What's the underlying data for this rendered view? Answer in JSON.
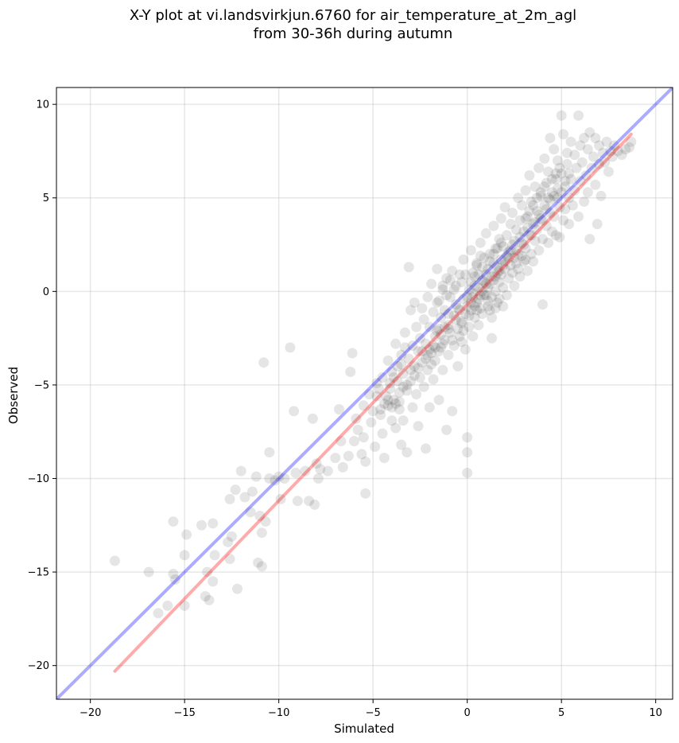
{
  "chart_data": {
    "type": "scatter",
    "title_line1": "X-Y plot at vi.landsvirkjun.6760 for air_temperature_at_2m_agl",
    "title_line2": "from 30-36h during autumn",
    "xlabel": "Simulated",
    "ylabel": "Observed",
    "xlim": [
      -21.8,
      10.9
    ],
    "ylim": [
      -21.8,
      10.9
    ],
    "xticks": [
      -20,
      -15,
      -10,
      -5,
      0,
      5,
      10
    ],
    "yticks": [
      -20,
      -15,
      -10,
      -5,
      0,
      5,
      10
    ],
    "xtick_labels": [
      "−20",
      "−15",
      "−10",
      "−5",
      "0",
      "5",
      "10"
    ],
    "ytick_labels": [
      "−20",
      "−15",
      "−10",
      "−5",
      "0",
      "5",
      "10"
    ],
    "grid": true,
    "marker_color": "#000000",
    "marker_alpha": 0.1,
    "identity_line": {
      "color": "#0000ff",
      "alpha": 0.33,
      "from": [
        -21.8,
        -21.8
      ],
      "to": [
        10.9,
        10.9
      ]
    },
    "fit_line": {
      "color": "#ff0000",
      "alpha": 0.33,
      "from": [
        -18.7,
        -20.3
      ],
      "to": [
        8.7,
        8.4
      ]
    },
    "points": [
      [
        -18.7,
        -14.4
      ],
      [
        -16.9,
        -15.0
      ],
      [
        -16.4,
        -17.2
      ],
      [
        -15.9,
        -16.8
      ],
      [
        -15.6,
        -12.3
      ],
      [
        -15.6,
        -15.1
      ],
      [
        -15.5,
        -15.4
      ],
      [
        -15.0,
        -16.8
      ],
      [
        -15.0,
        -14.1
      ],
      [
        -14.9,
        -13.0
      ],
      [
        -14.1,
        -12.5
      ],
      [
        -13.9,
        -16.3
      ],
      [
        -13.7,
        -16.5
      ],
      [
        -13.5,
        -15.5
      ],
      [
        -13.5,
        -12.4
      ],
      [
        -13.4,
        -14.1
      ],
      [
        -13.8,
        -15.0
      ],
      [
        -12.7,
        -13.4
      ],
      [
        -12.6,
        -14.3
      ],
      [
        -12.5,
        -13.1
      ],
      [
        -12.6,
        -11.1
      ],
      [
        -12.3,
        -10.6
      ],
      [
        -12.2,
        -15.9
      ],
      [
        -12.0,
        -9.6
      ],
      [
        -11.8,
        -11.0
      ],
      [
        -11.5,
        -11.8
      ],
      [
        -11.4,
        -10.7
      ],
      [
        -11.2,
        -9.9
      ],
      [
        -11.1,
        -14.5
      ],
      [
        -10.9,
        -14.7
      ],
      [
        -10.9,
        -12.9
      ],
      [
        -10.7,
        -12.3
      ],
      [
        -11.0,
        -12.0
      ],
      [
        -10.8,
        -3.8
      ],
      [
        -10.5,
        -8.6
      ],
      [
        -10.5,
        -10.0
      ],
      [
        -10.2,
        -10.1
      ],
      [
        -10.0,
        -9.9
      ],
      [
        -9.9,
        -11.1
      ],
      [
        -9.7,
        -10.0
      ],
      [
        -9.4,
        -3.0
      ],
      [
        -9.2,
        -6.4
      ],
      [
        -9.1,
        -9.7
      ],
      [
        -9.0,
        -11.2
      ],
      [
        -8.6,
        -9.6
      ],
      [
        -8.4,
        -11.2
      ],
      [
        -8.2,
        -6.8
      ],
      [
        -8.1,
        -11.4
      ],
      [
        -8.0,
        -9.2
      ],
      [
        -7.9,
        -10.0
      ],
      [
        -7.8,
        -9.5
      ],
      [
        -7.4,
        -9.6
      ],
      [
        -7.0,
        -8.9
      ],
      [
        -6.8,
        -6.3
      ],
      [
        -6.7,
        -8.0
      ],
      [
        -6.6,
        -9.4
      ],
      [
        -6.3,
        -8.8
      ],
      [
        -6.2,
        -4.3
      ],
      [
        -6.1,
        -3.3
      ],
      [
        -6.0,
        -8.0
      ],
      [
        -5.9,
        -6.8
      ],
      [
        -5.8,
        -7.4
      ],
      [
        -5.6,
        -8.7
      ],
      [
        -5.5,
        -6.1
      ],
      [
        -5.5,
        -7.8
      ],
      [
        -5.4,
        -9.1
      ],
      [
        -5.4,
        -10.8
      ],
      [
        -5.2,
        -5.5
      ],
      [
        -5.1,
        -7.0
      ],
      [
        -5.0,
        -6.4
      ],
      [
        -4.9,
        -8.3
      ],
      [
        -4.8,
        -4.9
      ],
      [
        -4.7,
        -5.2
      ],
      [
        -4.6,
        -6.6
      ],
      [
        -4.5,
        -7.6
      ],
      [
        -4.5,
        -4.6
      ],
      [
        -4.4,
        -8.9
      ],
      [
        -4.3,
        -5.6
      ],
      [
        -4.2,
        -3.7
      ],
      [
        -4.2,
        -6.1
      ],
      [
        -4.1,
        -5.2
      ],
      [
        -4.0,
        -4.3
      ],
      [
        -4.0,
        -6.9
      ],
      [
        -3.9,
        -5.8
      ],
      [
        -3.8,
        -7.3
      ],
      [
        -3.8,
        -2.8
      ],
      [
        -3.7,
        -4.8
      ],
      [
        -3.6,
        -5.4
      ],
      [
        -3.6,
        -6.3
      ],
      [
        -3.5,
        -3.9
      ],
      [
        -3.5,
        -8.2
      ],
      [
        -3.4,
        -4.4
      ],
      [
        -3.4,
        -6.9
      ],
      [
        -3.3,
        -2.2
      ],
      [
        -3.2,
        -5.0
      ],
      [
        -3.2,
        -8.6
      ],
      [
        -3.1,
        1.3
      ],
      [
        -3.1,
        -3.6
      ],
      [
        -3.0,
        -4.8
      ],
      [
        -3.0,
        -1.0
      ],
      [
        -2.9,
        -6.2
      ],
      [
        -2.9,
        -2.9
      ],
      [
        -2.8,
        -0.6
      ],
      [
        -2.8,
        -4.0
      ],
      [
        -2.7,
        -5.5
      ],
      [
        -2.7,
        -1.9
      ],
      [
        -2.6,
        -3.2
      ],
      [
        -2.6,
        -7.2
      ],
      [
        -2.5,
        -4.6
      ],
      [
        -2.5,
        -2.5
      ],
      [
        -2.4,
        -0.9
      ],
      [
        -2.4,
        -3.8
      ],
      [
        -2.3,
        -5.1
      ],
      [
        -2.3,
        -1.5
      ],
      [
        -2.2,
        -8.4
      ],
      [
        -2.2,
        -2.8
      ],
      [
        -2.1,
        -4.2
      ],
      [
        -2.1,
        -0.3
      ],
      [
        -2.0,
        -6.2
      ],
      [
        -2.0,
        -1.9
      ],
      [
        -1.9,
        0.4
      ],
      [
        -1.9,
        -3.3
      ],
      [
        -1.8,
        -4.7
      ],
      [
        -1.8,
        -1.1
      ],
      [
        -1.7,
        -2.4
      ],
      [
        -1.7,
        -3.7
      ],
      [
        -1.6,
        1.2
      ],
      [
        -1.6,
        -0.6
      ],
      [
        -1.5,
        -2.0
      ],
      [
        -1.5,
        -5.8
      ],
      [
        -1.4,
        -3.0
      ],
      [
        -1.4,
        -1.4
      ],
      [
        -1.3,
        0.1
      ],
      [
        -1.3,
        -4.2
      ],
      [
        -1.2,
        -2.6
      ],
      [
        -1.2,
        -1.0
      ],
      [
        -1.1,
        -7.4
      ],
      [
        -1.1,
        0.7
      ],
      [
        -1.0,
        -1.8
      ],
      [
        -1.0,
        -3.4
      ],
      [
        -0.9,
        -0.3
      ],
      [
        -0.9,
        -2.2
      ],
      [
        -0.8,
        -6.4
      ],
      [
        -0.8,
        1.1
      ],
      [
        -0.7,
        -1.3
      ],
      [
        -0.7,
        -2.9
      ],
      [
        -0.6,
        -0.7
      ],
      [
        -0.6,
        0.3
      ],
      [
        -0.5,
        -2.0
      ],
      [
        -0.5,
        -4.0
      ],
      [
        -0.4,
        -1.0
      ],
      [
        -0.4,
        0.9
      ],
      [
        -0.3,
        -1.6
      ],
      [
        -0.3,
        -2.7
      ],
      [
        -0.2,
        -0.4
      ],
      [
        -0.2,
        1.7
      ],
      [
        -0.1,
        -1.2
      ],
      [
        -0.1,
        -3.1
      ],
      [
        0.0,
        -0.8
      ],
      [
        0.0,
        -9.7
      ],
      [
        0.0,
        -7.8
      ],
      [
        0.0,
        -8.6
      ],
      [
        0.1,
        0.1
      ],
      [
        0.1,
        -1.9
      ],
      [
        0.2,
        2.2
      ],
      [
        0.2,
        -1.0
      ],
      [
        0.3,
        -0.3
      ],
      [
        0.3,
        -2.4
      ],
      [
        0.4,
        0.8
      ],
      [
        0.4,
        -1.4
      ],
      [
        0.5,
        1.4
      ],
      [
        0.5,
        -0.6
      ],
      [
        0.6,
        -1.8
      ],
      [
        0.6,
        0.2
      ],
      [
        0.7,
        2.6
      ],
      [
        0.7,
        -0.9
      ],
      [
        0.8,
        0.6
      ],
      [
        0.8,
        -1.2
      ],
      [
        0.9,
        1.8
      ],
      [
        0.9,
        -0.2
      ],
      [
        1.0,
        0.4
      ],
      [
        1.0,
        3.1
      ],
      [
        1.1,
        -0.5
      ],
      [
        1.1,
        1.2
      ],
      [
        1.2,
        2.0
      ],
      [
        1.2,
        -1.0
      ],
      [
        1.3,
        0.8
      ],
      [
        1.3,
        -2.5
      ],
      [
        1.4,
        1.5
      ],
      [
        1.4,
        3.5
      ],
      [
        1.5,
        0.0
      ],
      [
        1.5,
        2.3
      ],
      [
        1.6,
        1.0
      ],
      [
        1.6,
        -0.6
      ],
      [
        1.7,
        2.8
      ],
      [
        1.7,
        0.5
      ],
      [
        1.8,
        3.9
      ],
      [
        1.8,
        1.7
      ],
      [
        1.9,
        0.2
      ],
      [
        1.9,
        2.4
      ],
      [
        2.0,
        1.2
      ],
      [
        2.0,
        4.5
      ],
      [
        2.1,
        -0.2
      ],
      [
        2.1,
        3.0
      ],
      [
        2.2,
        1.8
      ],
      [
        2.2,
        0.7
      ],
      [
        2.3,
        3.6
      ],
      [
        2.3,
        2.2
      ],
      [
        2.4,
        1.0
      ],
      [
        2.4,
        4.2
      ],
      [
        2.5,
        2.7
      ],
      [
        2.5,
        0.3
      ],
      [
        2.6,
        3.3
      ],
      [
        2.6,
        1.5
      ],
      [
        2.7,
        5.0
      ],
      [
        2.7,
        2.0
      ],
      [
        2.8,
        3.8
      ],
      [
        2.8,
        0.8
      ],
      [
        2.9,
        2.6
      ],
      [
        2.9,
        4.6
      ],
      [
        3.0,
        1.6
      ],
      [
        3.0,
        3.2
      ],
      [
        3.1,
        5.4
      ],
      [
        3.1,
        2.3
      ],
      [
        3.2,
        4.0
      ],
      [
        3.2,
        1.1
      ],
      [
        3.3,
        3.0
      ],
      [
        3.3,
        6.2
      ],
      [
        3.4,
        2.0
      ],
      [
        3.4,
        4.8
      ],
      [
        3.5,
        3.6
      ],
      [
        3.5,
        1.6
      ],
      [
        3.6,
        5.6
      ],
      [
        3.6,
        2.7
      ],
      [
        3.7,
        4.3
      ],
      [
        3.7,
        3.3
      ],
      [
        3.8,
        6.6
      ],
      [
        3.8,
        2.2
      ],
      [
        3.9,
        5.1
      ],
      [
        3.9,
        3.9
      ],
      [
        4.0,
        -0.7
      ],
      [
        4.0,
        2.8
      ],
      [
        4.1,
        4.6
      ],
      [
        4.1,
        7.1
      ],
      [
        4.2,
        3.5
      ],
      [
        4.2,
        5.8
      ],
      [
        4.3,
        2.6
      ],
      [
        4.3,
        6.4
      ],
      [
        4.4,
        4.2
      ],
      [
        4.4,
        8.2
      ],
      [
        4.5,
        3.2
      ],
      [
        4.5,
        5.3
      ],
      [
        4.6,
        7.6
      ],
      [
        4.6,
        4.0
      ],
      [
        4.7,
        6.0
      ],
      [
        4.7,
        3.0
      ],
      [
        4.8,
        5.0
      ],
      [
        4.8,
        7.0
      ],
      [
        4.9,
        4.5
      ],
      [
        4.9,
        2.9
      ],
      [
        5.0,
        9.4
      ],
      [
        5.0,
        6.3
      ],
      [
        5.1,
        3.8
      ],
      [
        5.1,
        8.4
      ],
      [
        5.2,
        5.6
      ],
      [
        5.2,
        4.4
      ],
      [
        5.3,
        7.4
      ],
      [
        5.3,
        6.8
      ],
      [
        5.4,
        5.0
      ],
      [
        5.4,
        3.6
      ],
      [
        5.5,
        8.0
      ],
      [
        5.5,
        6.0
      ],
      [
        5.6,
        4.6
      ],
      [
        5.7,
        7.3
      ],
      [
        5.7,
        5.4
      ],
      [
        5.8,
        6.6
      ],
      [
        5.9,
        9.4
      ],
      [
        5.9,
        4.0
      ],
      [
        6.0,
        7.8
      ],
      [
        6.0,
        5.9
      ],
      [
        6.1,
        6.9
      ],
      [
        6.2,
        4.8
      ],
      [
        6.2,
        8.2
      ],
      [
        6.3,
        6.2
      ],
      [
        6.4,
        7.6
      ],
      [
        6.4,
        5.3
      ],
      [
        6.5,
        2.8
      ],
      [
        6.5,
        8.5
      ],
      [
        6.6,
        6.6
      ],
      [
        6.7,
        7.2
      ],
      [
        6.8,
        5.7
      ],
      [
        6.8,
        8.2
      ],
      [
        6.9,
        3.6
      ],
      [
        7.0,
        6.8
      ],
      [
        7.0,
        7.8
      ],
      [
        7.1,
        5.1
      ],
      [
        7.2,
        7.4
      ],
      [
        7.3,
        6.9
      ],
      [
        7.4,
        8.0
      ],
      [
        7.5,
        6.4
      ],
      [
        7.6,
        7.5
      ],
      [
        7.7,
        7.2
      ],
      [
        7.8,
        7.8
      ],
      [
        8.0,
        7.5
      ],
      [
        8.2,
        7.3
      ],
      [
        8.4,
        7.6
      ],
      [
        8.6,
        7.7
      ],
      [
        8.7,
        8.0
      ],
      [
        -0.5,
        -0.9
      ],
      [
        -0.3,
        -1.7
      ],
      [
        0.1,
        -1.3
      ],
      [
        0.3,
        -0.1
      ],
      [
        0.4,
        0.3
      ],
      [
        0.6,
        -0.4
      ],
      [
        0.8,
        0.0
      ],
      [
        1.0,
        -0.2
      ],
      [
        1.2,
        0.4
      ],
      [
        1.4,
        0.6
      ],
      [
        1.6,
        1.3
      ],
      [
        1.8,
        0.9
      ],
      [
        2.0,
        1.6
      ],
      [
        2.2,
        2.1
      ],
      [
        2.4,
        2.5
      ],
      [
        2.6,
        2.2
      ],
      [
        2.8,
        2.9
      ],
      [
        3.0,
        2.5
      ],
      [
        3.2,
        3.4
      ],
      [
        3.4,
        3.0
      ],
      [
        3.6,
        3.7
      ],
      [
        3.8,
        4.1
      ],
      [
        4.0,
        3.8
      ],
      [
        4.2,
        4.4
      ],
      [
        4.4,
        4.9
      ],
      [
        4.6,
        5.1
      ],
      [
        4.8,
        5.5
      ],
      [
        5.0,
        5.3
      ],
      [
        5.2,
        5.9
      ],
      [
        5.4,
        6.3
      ],
      [
        -1.0,
        -1.2
      ],
      [
        -1.2,
        -1.9
      ],
      [
        -1.4,
        -2.3
      ],
      [
        -1.6,
        -2.1
      ],
      [
        -1.8,
        -2.9
      ],
      [
        -2.0,
        -3.1
      ],
      [
        -2.2,
        -3.6
      ],
      [
        -2.4,
        -3.2
      ],
      [
        -2.6,
        -4.1
      ],
      [
        -2.8,
        -4.5
      ],
      [
        -3.0,
        -4.2
      ],
      [
        -3.2,
        -5.3
      ],
      [
        -3.4,
        -5.1
      ],
      [
        -3.6,
        -5.9
      ],
      [
        -3.8,
        -6.0
      ],
      [
        -4.0,
        -6.2
      ],
      [
        -4.2,
        -5.8
      ],
      [
        -4.4,
        -6.0
      ],
      [
        -4.6,
        -6.3
      ],
      [
        -4.8,
        -5.6
      ],
      [
        0.2,
        -0.6
      ],
      [
        0.5,
        -1.0
      ],
      [
        0.7,
        -0.2
      ],
      [
        0.9,
        0.5
      ],
      [
        1.1,
        0.2
      ],
      [
        1.3,
        -0.3
      ],
      [
        1.5,
        0.8
      ],
      [
        1.7,
        1.1
      ],
      [
        1.9,
        1.4
      ],
      [
        2.1,
        1.9
      ],
      [
        -0.2,
        -2.1
      ],
      [
        -0.4,
        -2.4
      ],
      [
        -0.6,
        -1.5
      ],
      [
        -0.8,
        -2.6
      ],
      [
        -1.0,
        -2.0
      ],
      [
        -1.3,
        -2.8
      ],
      [
        -1.5,
        -3.2
      ],
      [
        -1.7,
        -3.0
      ],
      [
        -1.9,
        -3.9
      ],
      [
        -2.1,
        -3.4
      ],
      [
        0.0,
        -0.3
      ],
      [
        0.2,
        0.5
      ],
      [
        0.4,
        -0.8
      ],
      [
        0.6,
        0.9
      ],
      [
        0.8,
        1.3
      ],
      [
        1.0,
        0.9
      ],
      [
        1.2,
        1.6
      ],
      [
        1.4,
        2.0
      ],
      [
        1.6,
        2.3
      ],
      [
        1.8,
        2.6
      ],
      [
        3.1,
        3.9
      ],
      [
        3.3,
        4.3
      ],
      [
        3.5,
        4.6
      ],
      [
        3.7,
        5.0
      ],
      [
        3.9,
        5.3
      ],
      [
        4.1,
        5.6
      ],
      [
        4.3,
        5.0
      ],
      [
        4.5,
        6.0
      ],
      [
        4.7,
        6.3
      ],
      [
        4.9,
        6.6
      ],
      [
        -0.7,
        0.1
      ],
      [
        -0.9,
        0.6
      ],
      [
        -1.1,
        -0.2
      ],
      [
        -1.3,
        0.3
      ],
      [
        -1.5,
        -0.5
      ],
      [
        2.3,
        1.4
      ],
      [
        2.5,
        1.8
      ],
      [
        2.7,
        1.2
      ],
      [
        2.9,
        1.9
      ],
      [
        3.1,
        1.7
      ],
      [
        -3.3,
        -3.0
      ],
      [
        -3.5,
        -3.4
      ],
      [
        -3.7,
        -4.0
      ],
      [
        -3.9,
        -4.6
      ],
      [
        -4.1,
        -4.9
      ],
      [
        1.1,
        -0.8
      ],
      [
        1.3,
        -1.4
      ],
      [
        1.5,
        -0.9
      ],
      [
        1.7,
        -0.4
      ],
      [
        1.9,
        -0.8
      ],
      [
        0.3,
        1.0
      ],
      [
        0.5,
        1.5
      ],
      [
        0.7,
        1.9
      ],
      [
        -0.1,
        0.9
      ],
      [
        -0.3,
        0.5
      ]
    ]
  }
}
